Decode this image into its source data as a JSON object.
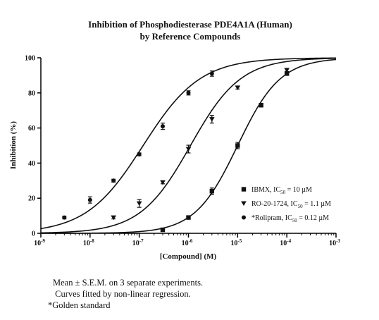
{
  "chart_data": {
    "type": "scatter",
    "title": [
      "Inhibition of Phosphodiesterase PDE4A1A (Human)",
      "by Reference Compounds"
    ],
    "xlabel": "[Compound] (M)",
    "ylabel": "Inhibition (%)",
    "xscale": "log",
    "xlim": [
      1e-09,
      0.001
    ],
    "ylim": [
      0,
      100
    ],
    "xticks": [
      {
        "value": 1e-09,
        "base": "10",
        "exp": "-9"
      },
      {
        "value": 1e-08,
        "base": "10",
        "exp": "-8"
      },
      {
        "value": 1e-07,
        "base": "10",
        "exp": "-7"
      },
      {
        "value": 1e-06,
        "base": "10",
        "exp": "-6"
      },
      {
        "value": 1e-05,
        "base": "10",
        "exp": "-5"
      },
      {
        "value": 0.0001,
        "base": "10",
        "exp": "-4"
      },
      {
        "value": 0.001,
        "base": "10",
        "exp": "-3"
      }
    ],
    "yticks": [
      0,
      20,
      40,
      60,
      80,
      100
    ],
    "grid": false,
    "legend_position": "bottom-right",
    "series": [
      {
        "name": "IBMX",
        "legend": {
          "pre": "IBMX, IC",
          "sub": "50",
          "post": " = 10 µM"
        },
        "marker": "square",
        "ic50": 1e-05,
        "hill": 1.0,
        "points": [
          {
            "x": 3e-07,
            "y": 2,
            "err": 0.8
          },
          {
            "x": 1e-06,
            "y": 9,
            "err": 0.8
          },
          {
            "x": 3e-06,
            "y": 24,
            "err": 1.8
          },
          {
            "x": 1e-05,
            "y": 50,
            "err": 1.8
          },
          {
            "x": 3e-05,
            "y": 73,
            "err": 1.0
          },
          {
            "x": 0.0001,
            "y": 91,
            "err": 0.8
          }
        ]
      },
      {
        "name": "RO-20-1724",
        "legend": {
          "pre": "RO-20-1724, IC",
          "sub": "50",
          "post": " = 1.1 µM"
        },
        "marker": "triangle-down",
        "ic50": 1.1e-06,
        "hill": 0.85,
        "points": [
          {
            "x": 3e-08,
            "y": 9,
            "err": 0.8
          },
          {
            "x": 1e-07,
            "y": 17,
            "err": 2.2
          },
          {
            "x": 3e-07,
            "y": 29,
            "err": 0.8
          },
          {
            "x": 1e-06,
            "y": 48,
            "err": 2.2
          },
          {
            "x": 3e-06,
            "y": 65,
            "err": 2.2
          },
          {
            "x": 1e-05,
            "y": 83,
            "err": 0.8
          },
          {
            "x": 0.0001,
            "y": 93,
            "err": 0.8
          }
        ]
      },
      {
        "name": "*Rolipram",
        "legend": {
          "pre": "*Rolipram, IC",
          "sub": "50",
          "post": " = 0.12 µM"
        },
        "marker": "circle",
        "ic50": 1.2e-07,
        "hill": 0.75,
        "points": [
          {
            "x": 3e-09,
            "y": 9,
            "err": 0.8
          },
          {
            "x": 1e-08,
            "y": 19,
            "err": 1.8
          },
          {
            "x": 3e-08,
            "y": 30,
            "err": 0.8
          },
          {
            "x": 1e-07,
            "y": 45,
            "err": 0.8
          },
          {
            "x": 3e-07,
            "y": 61,
            "err": 1.8
          },
          {
            "x": 1e-06,
            "y": 80,
            "err": 1.2
          },
          {
            "x": 3e-06,
            "y": 91,
            "err": 1.5
          }
        ]
      }
    ]
  },
  "notes": [
    "Mean ± S.E.M. on 3 separate experiments.",
    " Curves fitted by non-linear regression.",
    "*Golden standard"
  ]
}
